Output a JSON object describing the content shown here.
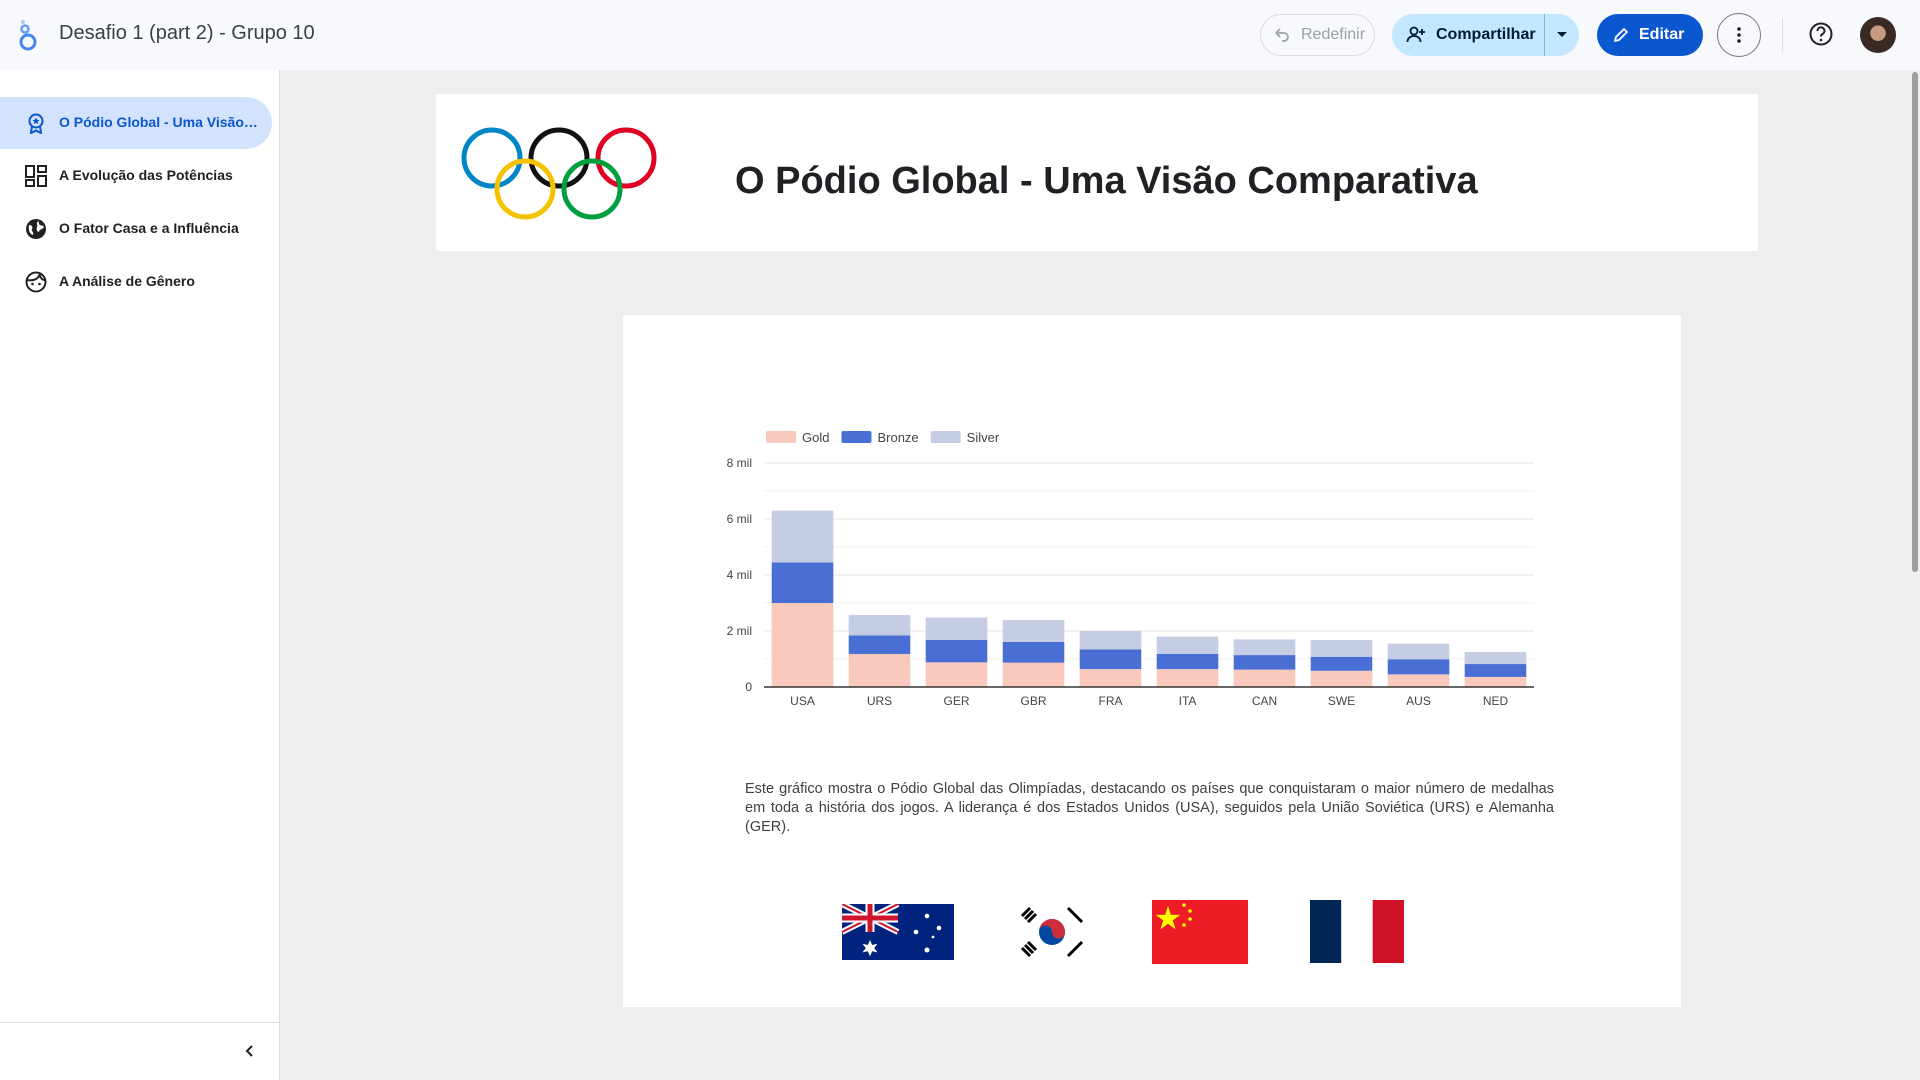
{
  "header": {
    "doc_title": "Desafio 1 (part 2) - Grupo 10",
    "reset_label": "Redefinir",
    "share_label": "Compartilhar",
    "edit_label": "Editar"
  },
  "sidebar": {
    "items": [
      {
        "label": "O Pódio Global - Uma Visão Comparativa",
        "icon": "award-icon",
        "active": true
      },
      {
        "label": "A Evolução das Potências",
        "icon": "dashboard-icon",
        "active": false
      },
      {
        "label": "O Fator Casa e a Influência",
        "icon": "globe-icon",
        "active": false
      },
      {
        "label": "A Análise de Gênero",
        "icon": "face-icon",
        "active": false
      }
    ]
  },
  "report": {
    "title": "O Pódio Global - Uma Visão Comparativa",
    "description": "Este gráfico mostra o Pódio Global das Olimpíadas, destacando os países que conquistaram o maior número de medalhas em toda a história dos jogos. A liderança é dos Estados Unidos (USA), seguidos pela União Soviética (URS) e Alemanha (GER).",
    "flags": [
      "australia-flag",
      "south-korea-flag",
      "china-flag",
      "france-flag"
    ]
  },
  "colors": {
    "gold": "#f8c9bc",
    "bronze": "#4a6fd4",
    "silver": "#c5cde4",
    "accent": "#0b57d0"
  },
  "chart_data": {
    "type": "bar",
    "stacked": true,
    "categories": [
      "USA",
      "URS",
      "GER",
      "GBR",
      "FRA",
      "ITA",
      "CAN",
      "SWE",
      "AUS",
      "NED"
    ],
    "series": [
      {
        "name": "Gold",
        "values": [
          3000,
          1180,
          880,
          870,
          640,
          640,
          620,
          580,
          450,
          360
        ]
      },
      {
        "name": "Bronze",
        "values": [
          1450,
          660,
          800,
          740,
          700,
          540,
          520,
          500,
          540,
          460
        ]
      },
      {
        "name": "Silver",
        "values": [
          1850,
          730,
          800,
          780,
          660,
          620,
          560,
          600,
          560,
          430
        ]
      }
    ],
    "yticks": [
      "0",
      "2 mil",
      "4 mil",
      "6 mil",
      "8 mil"
    ],
    "ylim": [
      0,
      8000
    ],
    "legend": "top-left"
  }
}
